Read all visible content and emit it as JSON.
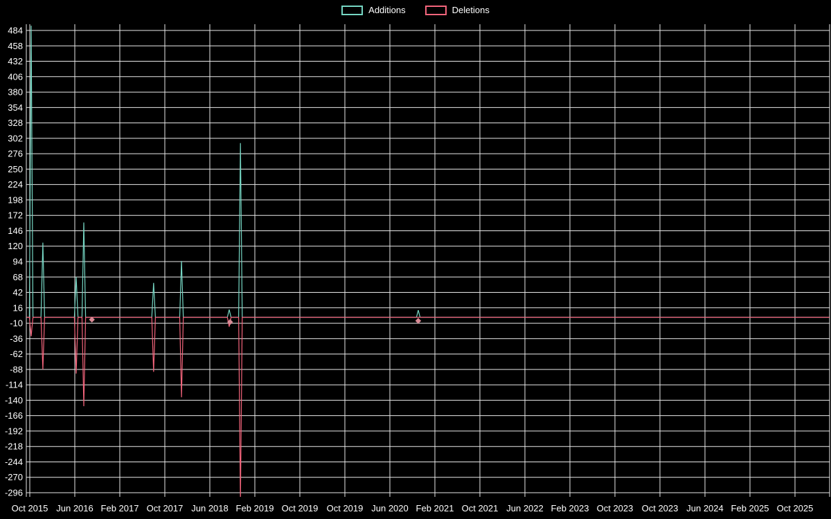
{
  "chart_data": {
    "type": "line",
    "title": "",
    "legend_position": "top-center",
    "background": "#000000",
    "grid": true,
    "grid_color": "#e9e9e9",
    "text_color": "#ffffff",
    "marker_color": "#d98a95",
    "ylim": [
      -296,
      484
    ],
    "y_ticks": [
      484,
      458,
      432,
      406,
      380,
      354,
      328,
      302,
      276,
      250,
      224,
      198,
      172,
      146,
      120,
      94,
      68,
      42,
      16,
      -10,
      -36,
      -62,
      -88,
      -114,
      -140,
      -166,
      -192,
      -218,
      -244,
      -270,
      -296
    ],
    "x_tick_labels": [
      "Oct 2015",
      "Jun 2016",
      "Feb 2017",
      "Oct 2017",
      "Jun 2018",
      "Feb 2019",
      "Oct 2019",
      "Oct 2019",
      "Jun 2020",
      "Feb 2021",
      "Oct 2021",
      "Jun 2022",
      "Feb 2023",
      "Oct 2023",
      "Oct 2023",
      "Jun 2024",
      "Feb 2025",
      "Oct 2025"
    ],
    "x_note": "spike positions 't' are fractional x-tick indices (0 = Oct 2015 tick, 1 = Jun 2016 tick, ...); values beyond ylim are clipped by the plot area",
    "series": [
      {
        "name": "Additions",
        "color": "#76d7c4",
        "baseline": 0,
        "spikes": [
          {
            "t": 0.03,
            "value": 492,
            "clipped": true
          },
          {
            "t": 0.29,
            "value": 126
          },
          {
            "t": 1.03,
            "value": 68
          },
          {
            "t": 1.2,
            "value": 160
          },
          {
            "t": 2.75,
            "value": 58
          },
          {
            "t": 3.37,
            "value": 95
          },
          {
            "t": 4.43,
            "value": 13
          },
          {
            "t": 4.68,
            "value": 294
          },
          {
            "t": 8.63,
            "value": 12
          }
        ]
      },
      {
        "name": "Deletions",
        "color": "#f4657c",
        "baseline": 0,
        "spikes": [
          {
            "t": 0.03,
            "value": -32
          },
          {
            "t": 0.29,
            "value": -88
          },
          {
            "t": 1.03,
            "value": -95
          },
          {
            "t": 1.2,
            "value": -150
          },
          {
            "t": 2.75,
            "value": -92
          },
          {
            "t": 3.37,
            "value": -135
          },
          {
            "t": 4.43,
            "value": -16
          },
          {
            "t": 4.68,
            "value": -310,
            "clipped": true
          }
        ]
      }
    ],
    "markers": [
      {
        "series": "Deletions",
        "t": 1.38,
        "value": -4
      },
      {
        "series": "Deletions",
        "t": 4.45,
        "value": -8
      },
      {
        "series": "Deletions",
        "t": 8.63,
        "value": -6
      }
    ]
  }
}
